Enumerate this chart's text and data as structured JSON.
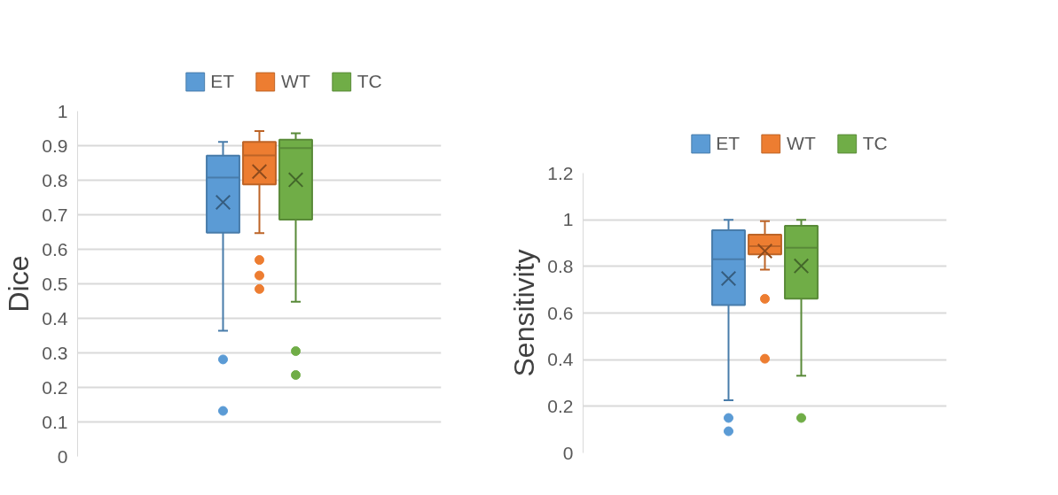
{
  "chart_data": [
    {
      "type": "box",
      "categories": [
        null
      ],
      "ylabel": "Dice",
      "ylim": [
        0,
        1
      ],
      "yticks": [
        0,
        0.1,
        0.2,
        0.3,
        0.4,
        0.5,
        0.6,
        0.7,
        0.8,
        0.9,
        1
      ],
      "grid": "y",
      "legend": "top",
      "tick_labels": "y",
      "series": [
        {
          "name": "ET",
          "color": "#5b9bd5",
          "boxes": [
            {
              "low": 0.364,
              "q1": 0.648,
              "median": 0.808,
              "q3": 0.871,
              "high": 0.911,
              "mean": 0.736,
              "outliers": [
                0.281,
                0.132
              ]
            }
          ]
        },
        {
          "name": "WT",
          "color": "#ed7d31",
          "boxes": [
            {
              "low": 0.647,
              "q1": 0.788,
              "median": 0.872,
              "q3": 0.911,
              "high": 0.942,
              "mean": 0.825,
              "outliers": [
                0.569,
                0.524,
                0.485
              ]
            }
          ]
        },
        {
          "name": "TC",
          "color": "#70ad47",
          "boxes": [
            {
              "low": 0.448,
              "q1": 0.686,
              "median": 0.893,
              "q3": 0.917,
              "high": 0.936,
              "mean": 0.801,
              "outliers": [
                0.305,
                0.236
              ]
            }
          ]
        }
      ]
    },
    {
      "type": "box",
      "categories": [
        null
      ],
      "ylabel": "Sensitivity",
      "ylim": [
        0,
        1.2
      ],
      "yticks": [
        0,
        0.2,
        0.4,
        0.6,
        0.8,
        1,
        1.2
      ],
      "grid": "y",
      "legend": "top",
      "tick_labels": "y",
      "series": [
        {
          "name": "ET",
          "color": "#5b9bd5",
          "boxes": [
            {
              "low": 0.226,
              "q1": 0.634,
              "median": 0.831,
              "q3": 0.955,
              "high": 1.0,
              "mean": 0.748,
              "outliers": [
                0.15,
                0.093
              ]
            }
          ]
        },
        {
          "name": "WT",
          "color": "#ed7d31",
          "boxes": [
            {
              "low": 0.786,
              "q1": 0.852,
              "median": 0.887,
              "q3": 0.936,
              "high": 0.994,
              "mean": 0.866,
              "outliers": [
                0.661,
                0.404
              ]
            }
          ]
        },
        {
          "name": "TC",
          "color": "#70ad47",
          "boxes": [
            {
              "low": 0.331,
              "q1": 0.662,
              "median": 0.88,
              "q3": 0.974,
              "high": 1.0,
              "mean": 0.802,
              "outliers": [
                0.15
              ]
            }
          ]
        }
      ]
    }
  ]
}
